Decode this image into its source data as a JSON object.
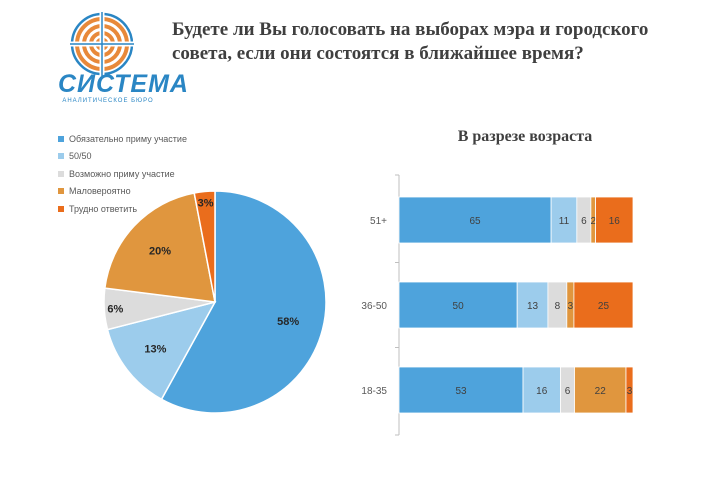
{
  "header": {
    "title": "Будете ли Вы голосовать на выборах мэра и городского совета, если они состоятся в ближайшее время?"
  },
  "logo": {
    "name": "СИСТЕМА",
    "tagline": "АНАЛИТИЧЕСКОЕ БЮРО",
    "color": "#2a86c4",
    "ring_color": "#e8893a"
  },
  "legend": {
    "items": [
      {
        "label": "Обязательно приму участие",
        "color": "#4ea3dc"
      },
      {
        "label": "50/50",
        "color": "#9cccec"
      },
      {
        "label": "Возможно приму участие",
        "color": "#dcdcdc"
      },
      {
        "label": "Маловероятно",
        "color": "#e0963e"
      },
      {
        "label": "Трудно ответить",
        "color": "#ea6d1c"
      }
    ]
  },
  "chart_data": [
    {
      "type": "pie",
      "categories": [
        "Обязательно приму участие",
        "50/50",
        "Возможно приму участие",
        "Маловероятно",
        "Трудно ответить"
      ],
      "values": [
        58,
        13,
        6,
        20,
        3
      ],
      "labels": [
        "58%",
        "13%",
        "6%",
        "20%",
        "3%"
      ],
      "colors": [
        "#4ea3dc",
        "#9cccec",
        "#dcdcdc",
        "#e0963e",
        "#ea6d1c"
      ],
      "legend": "top-left"
    },
    {
      "type": "bar",
      "orientation": "horizontal",
      "stacked": true,
      "title": "В разрезе возраста",
      "categories": [
        "51+",
        "36-50",
        "18-35"
      ],
      "series": [
        {
          "name": "Обязательно приму участие",
          "values": [
            65,
            50,
            53
          ],
          "color": "#4ea3dc"
        },
        {
          "name": "50/50",
          "values": [
            11,
            13,
            16
          ],
          "color": "#9cccec"
        },
        {
          "name": "Возможно приму участие",
          "values": [
            6,
            8,
            6
          ],
          "color": "#dcdcdc"
        },
        {
          "name": "Маловероятно",
          "values": [
            2,
            3,
            22
          ],
          "color": "#e0963e"
        },
        {
          "name": "Трудно ответить",
          "values": [
            16,
            25,
            3
          ],
          "color": "#ea6d1c"
        }
      ],
      "xlim": [
        0,
        100
      ],
      "grid": false
    }
  ]
}
